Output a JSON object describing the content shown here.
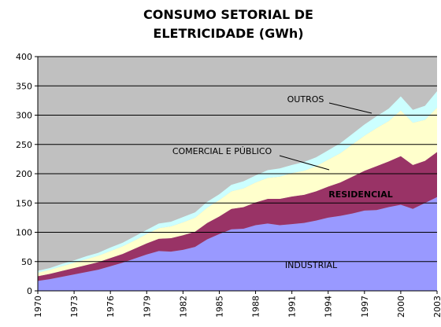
{
  "chart_data": {
    "type": "stacked_area",
    "title": [
      "CONSUMO SETORIAL DE",
      "ELETRICIDADE (GWh)"
    ],
    "x": [
      1970,
      1971,
      1972,
      1973,
      1974,
      1975,
      1976,
      1977,
      1978,
      1979,
      1980,
      1981,
      1982,
      1983,
      1984,
      1985,
      1986,
      1987,
      1988,
      1989,
      1990,
      1991,
      1992,
      1993,
      1994,
      1995,
      1996,
      1997,
      1998,
      1999,
      2000,
      2001,
      2002,
      2003
    ],
    "xlim": [
      1970,
      2003
    ],
    "xticks": [
      1970,
      1973,
      1976,
      1979,
      1982,
      1985,
      1988,
      1991,
      1994,
      1997,
      2000,
      2003
    ],
    "ylim": [
      0,
      400
    ],
    "yticks": [
      0,
      50,
      100,
      150,
      200,
      250,
      300,
      350,
      400
    ],
    "grid": true,
    "series": [
      {
        "name": "INDUSTRIAL",
        "color": "#9999ff",
        "values": [
          17,
          20,
          24,
          28,
          32,
          36,
          42,
          48,
          55,
          62,
          68,
          67,
          70,
          75,
          88,
          97,
          105,
          106,
          112,
          115,
          112,
          114,
          116,
          120,
          125,
          128,
          132,
          137,
          138,
          143,
          147,
          140,
          150,
          160
        ]
      },
      {
        "name": "RESIDENCIAL",
        "color": "#993366",
        "values": [
          8,
          9,
          10,
          11,
          12,
          13,
          14,
          15,
          17,
          19,
          21,
          23,
          25,
          26,
          28,
          30,
          35,
          37,
          39,
          42,
          45,
          47,
          48,
          50,
          53,
          57,
          63,
          68,
          75,
          78,
          83,
          75,
          72,
          77
        ]
      },
      {
        "name": "COMERCIAL E PÚBLICO",
        "color": "#ffffcc",
        "values": [
          6,
          7,
          8,
          9,
          10,
          11,
          12,
          13,
          14,
          16,
          18,
          20,
          22,
          24,
          26,
          28,
          30,
          32,
          34,
          36,
          38,
          40,
          41,
          43,
          46,
          50,
          55,
          60,
          65,
          69,
          78,
          72,
          70,
          76
        ]
      },
      {
        "name": "OUTROS",
        "color": "#ccffff",
        "values": [
          3,
          3,
          4,
          4,
          5,
          5,
          6,
          6,
          7,
          7,
          8,
          8,
          9,
          9,
          10,
          10,
          11,
          12,
          12,
          13,
          14,
          14,
          15,
          15,
          16,
          17,
          18,
          19,
          20,
          21,
          24,
          22,
          24,
          28
        ]
      }
    ]
  }
}
